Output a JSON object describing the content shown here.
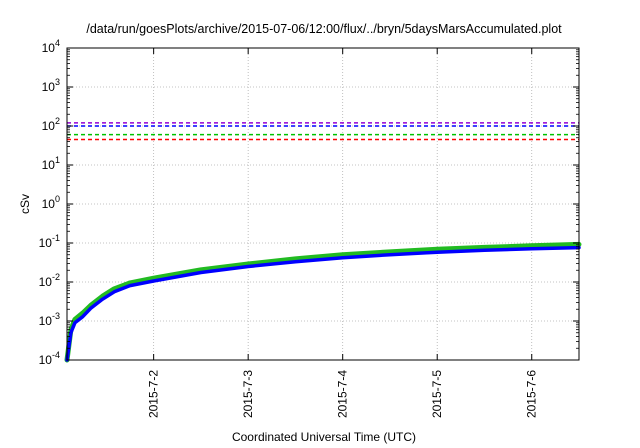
{
  "chart_data": {
    "type": "line",
    "title": "/data/run/goesPlots/archive/2015-07-06/12:00/flux/../bryn/5daysMarsAccumulated.plot",
    "xlabel": "Coordinated Universal Time (UTC)",
    "ylabel": "cSv",
    "yscale": "log",
    "ylim": [
      0.0001,
      10000
    ],
    "xlim": [
      "2015-07-01T02:00",
      "2015-07-06T12:00"
    ],
    "grid": true,
    "x_ticks": [
      "2015-7-2",
      "2015-7-3",
      "2015-7-4",
      "2015-7-5",
      "2015-7-6"
    ],
    "y_ticks": [
      {
        "base": "10",
        "exp": "-4"
      },
      {
        "base": "10",
        "exp": "-3"
      },
      {
        "base": "10",
        "exp": "-2"
      },
      {
        "base": "10",
        "exp": "-1"
      },
      {
        "base": "10",
        "exp": "0"
      },
      {
        "base": "10",
        "exp": "1"
      },
      {
        "base": "10",
        "exp": "2"
      },
      {
        "base": "10",
        "exp": "3"
      },
      {
        "base": "10",
        "exp": "4"
      }
    ],
    "reference_lines": [
      {
        "value": 120,
        "color": "#9400d3"
      },
      {
        "value": 100,
        "color": "#0000ff"
      },
      {
        "value": 60,
        "color": "#00c000"
      },
      {
        "value": 45,
        "color": "#ff0000"
      }
    ],
    "series": [
      {
        "color": "#22bb22",
        "x": [
          "2015-07-01T02:00",
          "2015-07-01T03:00",
          "2015-07-01T04:00",
          "2015-07-01T06:00",
          "2015-07-01T08:00",
          "2015-07-01T11:00",
          "2015-07-01T14:00",
          "2015-07-01T18:00",
          "2015-07-02T00:00",
          "2015-07-02T12:00",
          "2015-07-03T00:00",
          "2015-07-03T12:00",
          "2015-07-04T00:00",
          "2015-07-04T12:00",
          "2015-07-05T00:00",
          "2015-07-05T12:00",
          "2015-07-06T00:00",
          "2015-07-06T12:00"
        ],
        "y": [
          0.0001,
          0.0006,
          0.0011,
          0.0016,
          0.0025,
          0.0043,
          0.0067,
          0.0095,
          0.0125,
          0.0205,
          0.029,
          0.039,
          0.05,
          0.059,
          0.069,
          0.077,
          0.085,
          0.092
        ]
      },
      {
        "color": "#0000ff",
        "x": [
          "2015-07-01T02:00",
          "2015-07-01T03:00",
          "2015-07-01T04:00",
          "2015-07-01T06:00",
          "2015-07-01T08:00",
          "2015-07-01T11:00",
          "2015-07-01T14:00",
          "2015-07-01T18:00",
          "2015-07-02T00:00",
          "2015-07-02T12:00",
          "2015-07-03T00:00",
          "2015-07-03T12:00",
          "2015-07-04T00:00",
          "2015-07-04T12:00",
          "2015-07-05T00:00",
          "2015-07-05T12:00",
          "2015-07-06T00:00",
          "2015-07-06T12:00"
        ],
        "y": [
          0.0001,
          0.0005,
          0.0009,
          0.0013,
          0.0021,
          0.0036,
          0.0056,
          0.0081,
          0.0106,
          0.0175,
          0.025,
          0.033,
          0.042,
          0.05,
          0.058,
          0.065,
          0.071,
          0.076
        ]
      }
    ]
  }
}
